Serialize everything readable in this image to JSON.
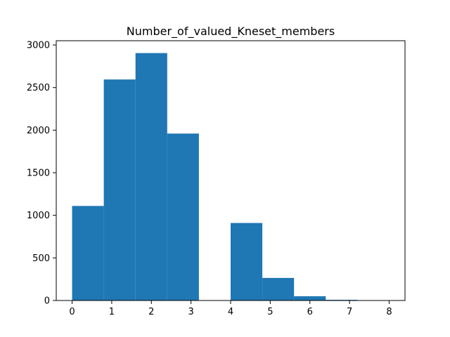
{
  "chart_data": {
    "type": "bar",
    "title": "Number_of_valued_Kneset_members",
    "xlabel": "",
    "ylabel": "",
    "bar_color": "#1f77b4",
    "xlim": [
      -0.4,
      8.4
    ],
    "ylim": [
      0,
      3050
    ],
    "xticks": [
      0,
      1,
      2,
      3,
      4,
      5,
      6,
      7,
      8
    ],
    "yticks": [
      0,
      500,
      1000,
      1500,
      2000,
      2500,
      3000
    ],
    "bins": [
      {
        "x0": 0.0,
        "x1": 0.8,
        "value": 1110
      },
      {
        "x0": 0.8,
        "x1": 1.6,
        "value": 2595
      },
      {
        "x0": 1.6,
        "x1": 2.4,
        "value": 2905
      },
      {
        "x0": 2.4,
        "x1": 3.2,
        "value": 1960
      },
      {
        "x0": 3.2,
        "x1": 4.0,
        "value": 0
      },
      {
        "x0": 4.0,
        "x1": 4.8,
        "value": 910
      },
      {
        "x0": 4.8,
        "x1": 5.6,
        "value": 265
      },
      {
        "x0": 5.6,
        "x1": 6.4,
        "value": 50
      },
      {
        "x0": 6.4,
        "x1": 7.2,
        "value": 8
      },
      {
        "x0": 7.2,
        "x1": 8.0,
        "value": 1
      }
    ],
    "grid": false,
    "legend": "none"
  }
}
